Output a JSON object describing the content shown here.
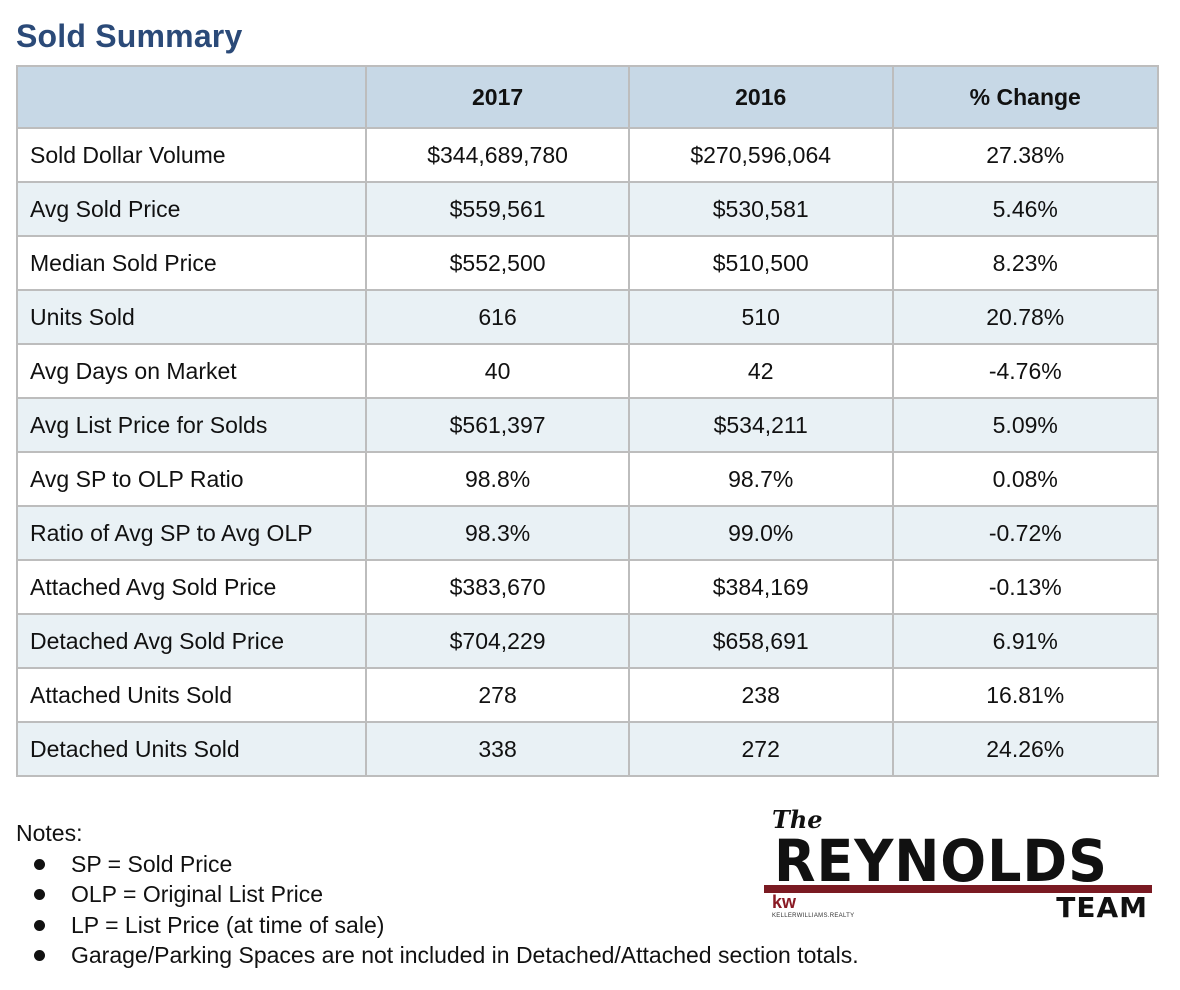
{
  "title": "Sold Summary",
  "table": {
    "headers": [
      "",
      "2017",
      "2016",
      "% Change"
    ],
    "rows": [
      [
        "Sold Dollar Volume",
        "$344,689,780",
        "$270,596,064",
        "27.38%"
      ],
      [
        "Avg Sold Price",
        "$559,561",
        "$530,581",
        "5.46%"
      ],
      [
        "Median Sold Price",
        "$552,500",
        "$510,500",
        "8.23%"
      ],
      [
        "Units Sold",
        "616",
        "510",
        "20.78%"
      ],
      [
        "Avg Days on Market",
        "40",
        "42",
        "-4.76%"
      ],
      [
        "Avg List Price for Solds",
        "$561,397",
        "$534,211",
        "5.09%"
      ],
      [
        "Avg SP to OLP Ratio",
        "98.8%",
        "98.7%",
        "0.08%"
      ],
      [
        "Ratio of Avg SP to Avg OLP",
        "98.3%",
        "99.0%",
        "-0.72%"
      ],
      [
        "Attached Avg Sold Price",
        "$383,670",
        "$384,169",
        "-0.13%"
      ],
      [
        "Detached Avg Sold Price",
        "$704,229",
        "$658,691",
        "6.91%"
      ],
      [
        "Attached Units Sold",
        "278",
        "238",
        "16.81%"
      ],
      [
        "Detached Units Sold",
        "338",
        "272",
        "24.26%"
      ]
    ]
  },
  "notes": {
    "heading": "Notes:",
    "items": [
      "SP = Sold Price",
      "OLP = Original List Price",
      "LP = List Price (at time of sale)",
      "Garage/Parking Spaces are not included in Detached/Attached section totals."
    ]
  },
  "logo": {
    "the": "The",
    "word": "REYNOLDS",
    "team": "TEAM",
    "kw": "kw",
    "kw_sub": "KELLERWILLIAMS.REALTY",
    "bar_color": "#7a1a22"
  }
}
